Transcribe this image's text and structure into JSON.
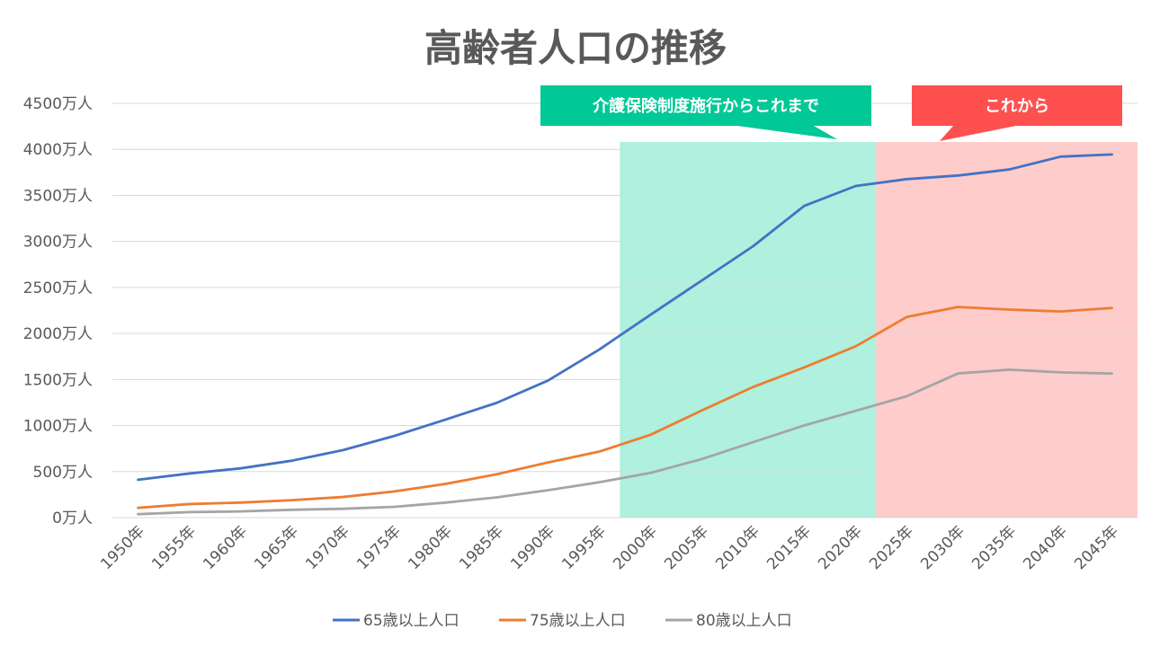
{
  "chart_data": {
    "type": "line",
    "title": "高齢者人口の推移",
    "xlabel": "",
    "ylabel": "",
    "categories": [
      "1950年",
      "1955年",
      "1960年",
      "1965年",
      "1970年",
      "1975年",
      "1980年",
      "1985年",
      "1990年",
      "1995年",
      "2000年",
      "2005年",
      "2010年",
      "2015年",
      "2020年",
      "2025年",
      "2030年",
      "2035年",
      "2040年",
      "2045年"
    ],
    "ylim": [
      0,
      4500
    ],
    "ytick_values": [
      0,
      500,
      1000,
      1500,
      2000,
      2500,
      3000,
      3500,
      4000,
      4500
    ],
    "ytick_labels": [
      "0万人",
      "500万人",
      "1000万人",
      "1500万人",
      "2000万人",
      "2500万人",
      "3000万人",
      "3500万人",
      "4000万人",
      "4500万人"
    ],
    "grid": "horizontal",
    "legend_position": "bottom",
    "series": [
      {
        "name": "65歳以上人口",
        "color": "#4472c4",
        "values": [
          411,
          479,
          535,
          618,
          733,
          887,
          1065,
          1247,
          1489,
          1826,
          2204,
          2576,
          2948,
          3387,
          3602,
          3677,
          3716,
          3782,
          3921,
          3945
        ]
      },
      {
        "name": "75歳以上人口",
        "color": "#ed7d31",
        "values": [
          106,
          147,
          163,
          189,
          224,
          284,
          366,
          471,
          599,
          717,
          900,
          1164,
          1419,
          1632,
          1860,
          2180,
          2288,
          2260,
          2239,
          2277
        ]
      },
      {
        "name": "80歳以上人口",
        "color": "#a5a5a5",
        "values": [
          37,
          60,
          67,
          85,
          96,
          117,
          163,
          220,
          298,
          384,
          486,
          636,
          819,
          1002,
          1160,
          1319,
          1566,
          1607,
          1578,
          1565
        ]
      }
    ],
    "annotations": [
      {
        "label": "介護保険制度施行からこれまで",
        "color": "#00c896",
        "region_fill": "#6de3c2",
        "from": "1997年",
        "to": "2022年"
      },
      {
        "label": "これから",
        "color": "#ff5050",
        "region_fill": "#ffa3a3",
        "from": "2022年",
        "to": "2045年"
      }
    ]
  }
}
